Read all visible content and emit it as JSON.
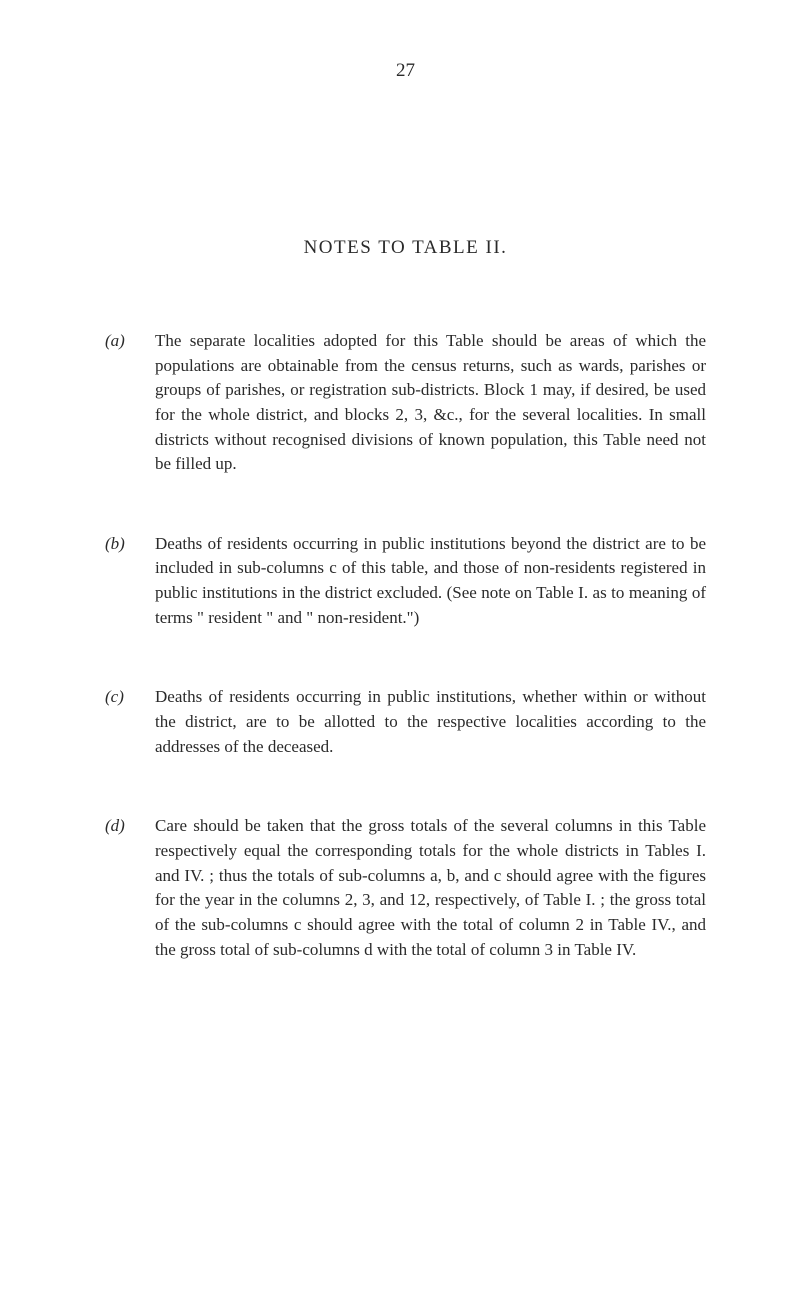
{
  "page_number": "27",
  "title": "NOTES TO TABLE II.",
  "notes": [
    {
      "label": "(a)",
      "text": "The separate localities adopted for this Table should be areas of which the populations are obtainable from the census returns, such as wards, parishes or groups of parishes, or registration sub-districts. Block 1 may, if desired, be used for the whole district, and blocks 2, 3, &c., for the several localities. In small districts without recognised divisions of known population, this Table need not be filled up."
    },
    {
      "label": "(b)",
      "text": "Deaths of residents occurring in public institutions beyond the district are to be included in sub-columns c of this table, and those of non-residents registered in public institutions in the district excluded. (See note on Table I. as to meaning of terms \" resident \" and \" non-resident.\")"
    },
    {
      "label": "(c)",
      "text": "Deaths of residents occurring in public institutions, whether within or without the district, are to be allotted to the respective localities according to the addresses of the deceased."
    },
    {
      "label": "(d)",
      "text": "Care should be taken that the gross totals of the several columns in this Table respectively equal the corresponding totals for the whole districts in Tables I. and IV. ; thus the totals of sub-columns a, b, and c should agree with the figures for the year in the columns 2, 3, and 12, respectively, of Table I. ; the gross total of the sub-columns c should agree with the total of column 2 in Table IV., and the gross total of sub-columns d with the total of column 3 in Table IV."
    }
  ],
  "colors": {
    "background": "#ffffff",
    "text": "#2a2a2a"
  },
  "typography": {
    "body_fontsize": 17,
    "title_fontsize": 19,
    "page_number_fontsize": 19,
    "font_family": "Georgia, Times New Roman, serif",
    "line_height": 1.45
  }
}
